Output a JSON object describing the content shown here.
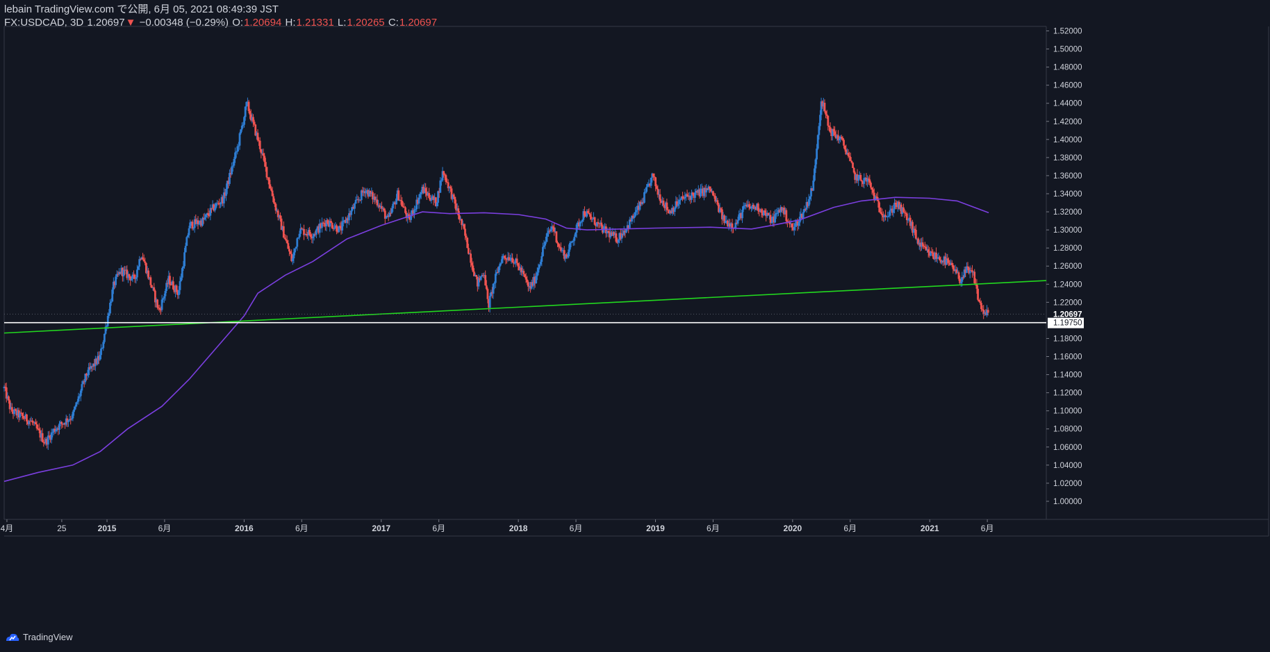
{
  "header": {
    "publish_line": "lebain TradingView.com で公開, 6月 05, 2021 08:49:39 JST",
    "symbol": "FX:USDCAD, 3D",
    "last": "1.20697",
    "down_arrow": "▼",
    "change": "−0.00348 (−0.29%)",
    "o_label": "O:",
    "o_value": "1.20694",
    "h_label": "H:",
    "h_value": "1.21331",
    "l_label": "L:",
    "l_value": "1.20265",
    "c_label": "C:",
    "c_value": "1.20697"
  },
  "footer": {
    "brand": "TradingView"
  },
  "colors": {
    "background": "#131722",
    "up": "#2e7dd2",
    "down": "#ef5350",
    "ma": "#7b3fe0",
    "trendline": "#22d81f",
    "support": "#ffffff",
    "axis_text": "#d1d4dc"
  },
  "chart_data": {
    "type": "candlestick",
    "symbol": "FX:USDCAD",
    "timeframe": "3D",
    "y_range": [
      0.98,
      1.525
    ],
    "y_ticks": [
      "1.52000",
      "1.50000",
      "1.48000",
      "1.46000",
      "1.44000",
      "1.42000",
      "1.40000",
      "1.38000",
      "1.36000",
      "1.34000",
      "1.32000",
      "1.30000",
      "1.28000",
      "1.26000",
      "1.24000",
      "1.22000",
      "1.18000",
      "1.16000",
      "1.14000",
      "1.12000",
      "1.10000",
      "1.08000",
      "1.06000",
      "1.04000",
      "1.02000",
      "1.00000"
    ],
    "x_range": [
      2014.25,
      2021.85
    ],
    "x_ticks": [
      {
        "t": 2014.27,
        "label": "4月"
      },
      {
        "t": 2014.67,
        "label": "25"
      },
      {
        "t": 2015.0,
        "label": "2015"
      },
      {
        "t": 2015.42,
        "label": "6月"
      },
      {
        "t": 2016.0,
        "label": "2016"
      },
      {
        "t": 2016.42,
        "label": "6月"
      },
      {
        "t": 2017.0,
        "label": "2017"
      },
      {
        "t": 2017.42,
        "label": "6月"
      },
      {
        "t": 2018.0,
        "label": "2018"
      },
      {
        "t": 2018.42,
        "label": "6月"
      },
      {
        "t": 2019.0,
        "label": "2019"
      },
      {
        "t": 2019.42,
        "label": "6月"
      },
      {
        "t": 2020.0,
        "label": "2020"
      },
      {
        "t": 2020.42,
        "label": "6月"
      },
      {
        "t": 2021.0,
        "label": "2021"
      },
      {
        "t": 2021.42,
        "label": "6月"
      }
    ],
    "price_anchors": [
      [
        2014.25,
        1.125
      ],
      [
        2014.3,
        1.1
      ],
      [
        2014.45,
        1.088
      ],
      [
        2014.55,
        1.065
      ],
      [
        2014.62,
        1.08
      ],
      [
        2014.75,
        1.095
      ],
      [
        2014.85,
        1.14
      ],
      [
        2014.95,
        1.16
      ],
      [
        2015.05,
        1.24
      ],
      [
        2015.1,
        1.255
      ],
      [
        2015.2,
        1.245
      ],
      [
        2015.25,
        1.275
      ],
      [
        2015.32,
        1.24
      ],
      [
        2015.38,
        1.21
      ],
      [
        2015.45,
        1.245
      ],
      [
        2015.52,
        1.23
      ],
      [
        2015.6,
        1.305
      ],
      [
        2015.7,
        1.31
      ],
      [
        2015.78,
        1.325
      ],
      [
        2015.85,
        1.335
      ],
      [
        2015.95,
        1.39
      ],
      [
        2016.02,
        1.44
      ],
      [
        2016.06,
        1.42
      ],
      [
        2016.12,
        1.39
      ],
      [
        2016.22,
        1.33
      ],
      [
        2016.32,
        1.28
      ],
      [
        2016.35,
        1.265
      ],
      [
        2016.4,
        1.3
      ],
      [
        2016.5,
        1.295
      ],
      [
        2016.6,
        1.31
      ],
      [
        2016.7,
        1.3
      ],
      [
        2016.8,
        1.325
      ],
      [
        2016.88,
        1.345
      ],
      [
        2016.98,
        1.33
      ],
      [
        2017.05,
        1.31
      ],
      [
        2017.12,
        1.34
      ],
      [
        2017.2,
        1.31
      ],
      [
        2017.3,
        1.345
      ],
      [
        2017.4,
        1.33
      ],
      [
        2017.45,
        1.365
      ],
      [
        2017.5,
        1.345
      ],
      [
        2017.6,
        1.3
      ],
      [
        2017.65,
        1.27
      ],
      [
        2017.7,
        1.24
      ],
      [
        2017.75,
        1.255
      ],
      [
        2017.78,
        1.215
      ],
      [
        2017.82,
        1.24
      ],
      [
        2017.88,
        1.27
      ],
      [
        2017.95,
        1.27
      ],
      [
        2018.02,
        1.255
      ],
      [
        2018.08,
        1.235
      ],
      [
        2018.12,
        1.245
      ],
      [
        2018.2,
        1.29
      ],
      [
        2018.25,
        1.305
      ],
      [
        2018.3,
        1.28
      ],
      [
        2018.35,
        1.27
      ],
      [
        2018.42,
        1.3
      ],
      [
        2018.48,
        1.32
      ],
      [
        2018.55,
        1.31
      ],
      [
        2018.62,
        1.3
      ],
      [
        2018.72,
        1.29
      ],
      [
        2018.8,
        1.305
      ],
      [
        2018.9,
        1.33
      ],
      [
        2018.98,
        1.36
      ],
      [
        2019.02,
        1.34
      ],
      [
        2019.1,
        1.32
      ],
      [
        2019.2,
        1.335
      ],
      [
        2019.3,
        1.34
      ],
      [
        2019.4,
        1.345
      ],
      [
        2019.5,
        1.31
      ],
      [
        2019.58,
        1.305
      ],
      [
        2019.65,
        1.325
      ],
      [
        2019.75,
        1.325
      ],
      [
        2019.85,
        1.31
      ],
      [
        2019.92,
        1.325
      ],
      [
        2020.0,
        1.3
      ],
      [
        2020.08,
        1.32
      ],
      [
        2020.12,
        1.335
      ],
      [
        2020.15,
        1.35
      ],
      [
        2020.18,
        1.4
      ],
      [
        2020.21,
        1.445
      ],
      [
        2020.27,
        1.41
      ],
      [
        2020.35,
        1.4
      ],
      [
        2020.4,
        1.385
      ],
      [
        2020.45,
        1.36
      ],
      [
        2020.5,
        1.355
      ],
      [
        2020.55,
        1.355
      ],
      [
        2020.6,
        1.335
      ],
      [
        2020.65,
        1.32
      ],
      [
        2020.7,
        1.315
      ],
      [
        2020.75,
        1.33
      ],
      [
        2020.8,
        1.32
      ],
      [
        2020.85,
        1.31
      ],
      [
        2020.92,
        1.285
      ],
      [
        2020.98,
        1.275
      ],
      [
        2021.05,
        1.27
      ],
      [
        2021.12,
        1.265
      ],
      [
        2021.18,
        1.255
      ],
      [
        2021.22,
        1.245
      ],
      [
        2021.27,
        1.255
      ],
      [
        2021.32,
        1.25
      ],
      [
        2021.36,
        1.22
      ],
      [
        2021.4,
        1.207
      ],
      [
        2021.43,
        1.207
      ]
    ],
    "ma_anchors": [
      [
        2014.25,
        1.022
      ],
      [
        2014.5,
        1.032
      ],
      [
        2014.75,
        1.04
      ],
      [
        2014.95,
        1.055
      ],
      [
        2015.15,
        1.08
      ],
      [
        2015.4,
        1.105
      ],
      [
        2015.6,
        1.135
      ],
      [
        2015.8,
        1.17
      ],
      [
        2016.0,
        1.205
      ],
      [
        2016.1,
        1.23
      ],
      [
        2016.3,
        1.25
      ],
      [
        2016.5,
        1.265
      ],
      [
        2016.75,
        1.29
      ],
      [
        2017.0,
        1.305
      ],
      [
        2017.3,
        1.32
      ],
      [
        2017.5,
        1.318
      ],
      [
        2017.75,
        1.319
      ],
      [
        2018.0,
        1.317
      ],
      [
        2018.2,
        1.312
      ],
      [
        2018.35,
        1.302
      ],
      [
        2018.5,
        1.3
      ],
      [
        2018.75,
        1.301
      ],
      [
        2019.0,
        1.302
      ],
      [
        2019.4,
        1.303
      ],
      [
        2019.7,
        1.301
      ],
      [
        2019.85,
        1.305
      ],
      [
        2020.05,
        1.311
      ],
      [
        2020.3,
        1.325
      ],
      [
        2020.5,
        1.332
      ],
      [
        2020.75,
        1.336
      ],
      [
        2021.0,
        1.335
      ],
      [
        2021.2,
        1.332
      ],
      [
        2021.43,
        1.319
      ]
    ],
    "trendline": {
      "from": [
        2014.25,
        1.186
      ],
      "to": [
        2021.85,
        1.244
      ]
    },
    "support_level": 1.1975,
    "support_label": "1.19750",
    "last_price_label": "1.20697",
    "last_price": 1.20697
  }
}
